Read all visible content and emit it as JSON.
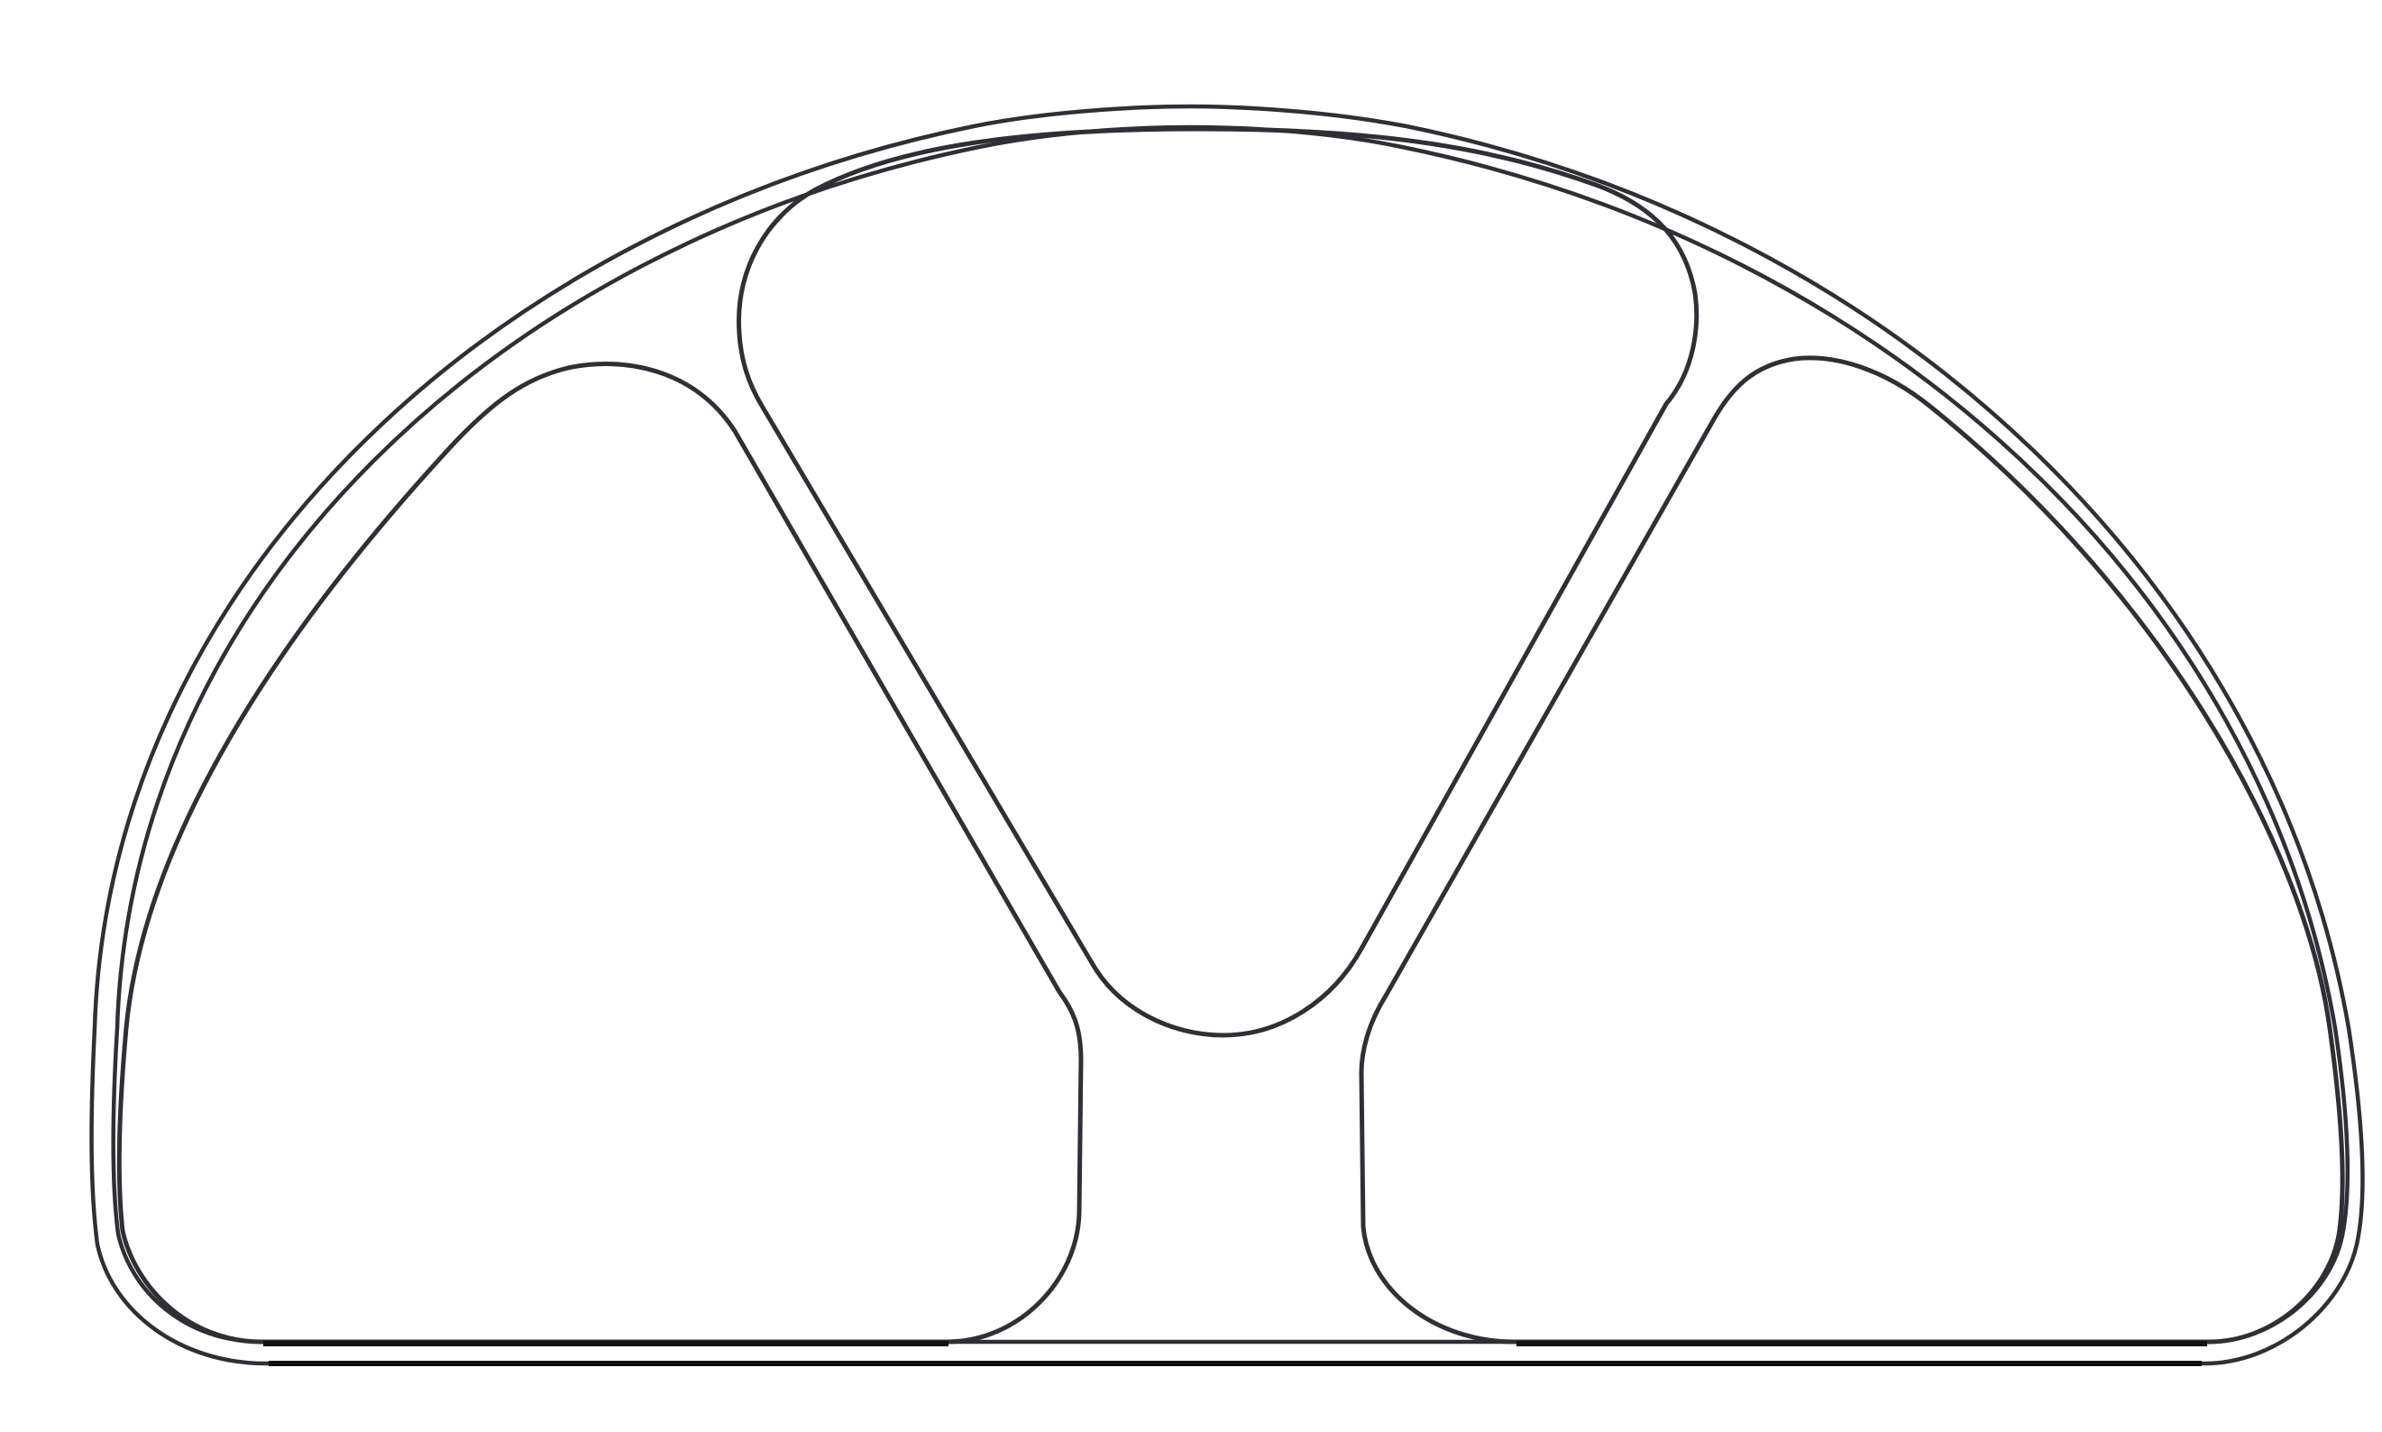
{
  "diagram": {
    "shape": "semicircular frame with three rounded triangular cutouts",
    "background_color": "#ffffff",
    "stroke_color": "#2f2f36",
    "base_stroke_color": "#111111",
    "cutout_count": 3
  }
}
